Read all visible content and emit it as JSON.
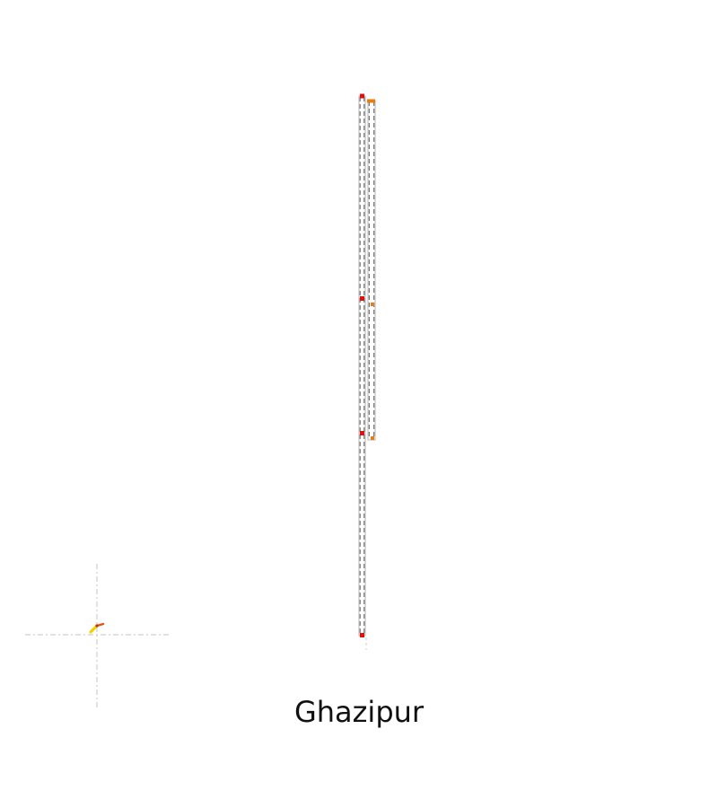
{
  "map": {
    "label": "Ghazipur",
    "background": "#ffffff",
    "colors": {
      "track_outer": "#b5b5b5",
      "track_dash": "#5a5a5a",
      "crosshair": "#cfcfcf",
      "station_red": "#e01010",
      "station_orange": "#f07a10",
      "marker_yellow": "#f5d000"
    },
    "icons": [
      "location-marker-icon",
      "crosshair-icon"
    ]
  }
}
